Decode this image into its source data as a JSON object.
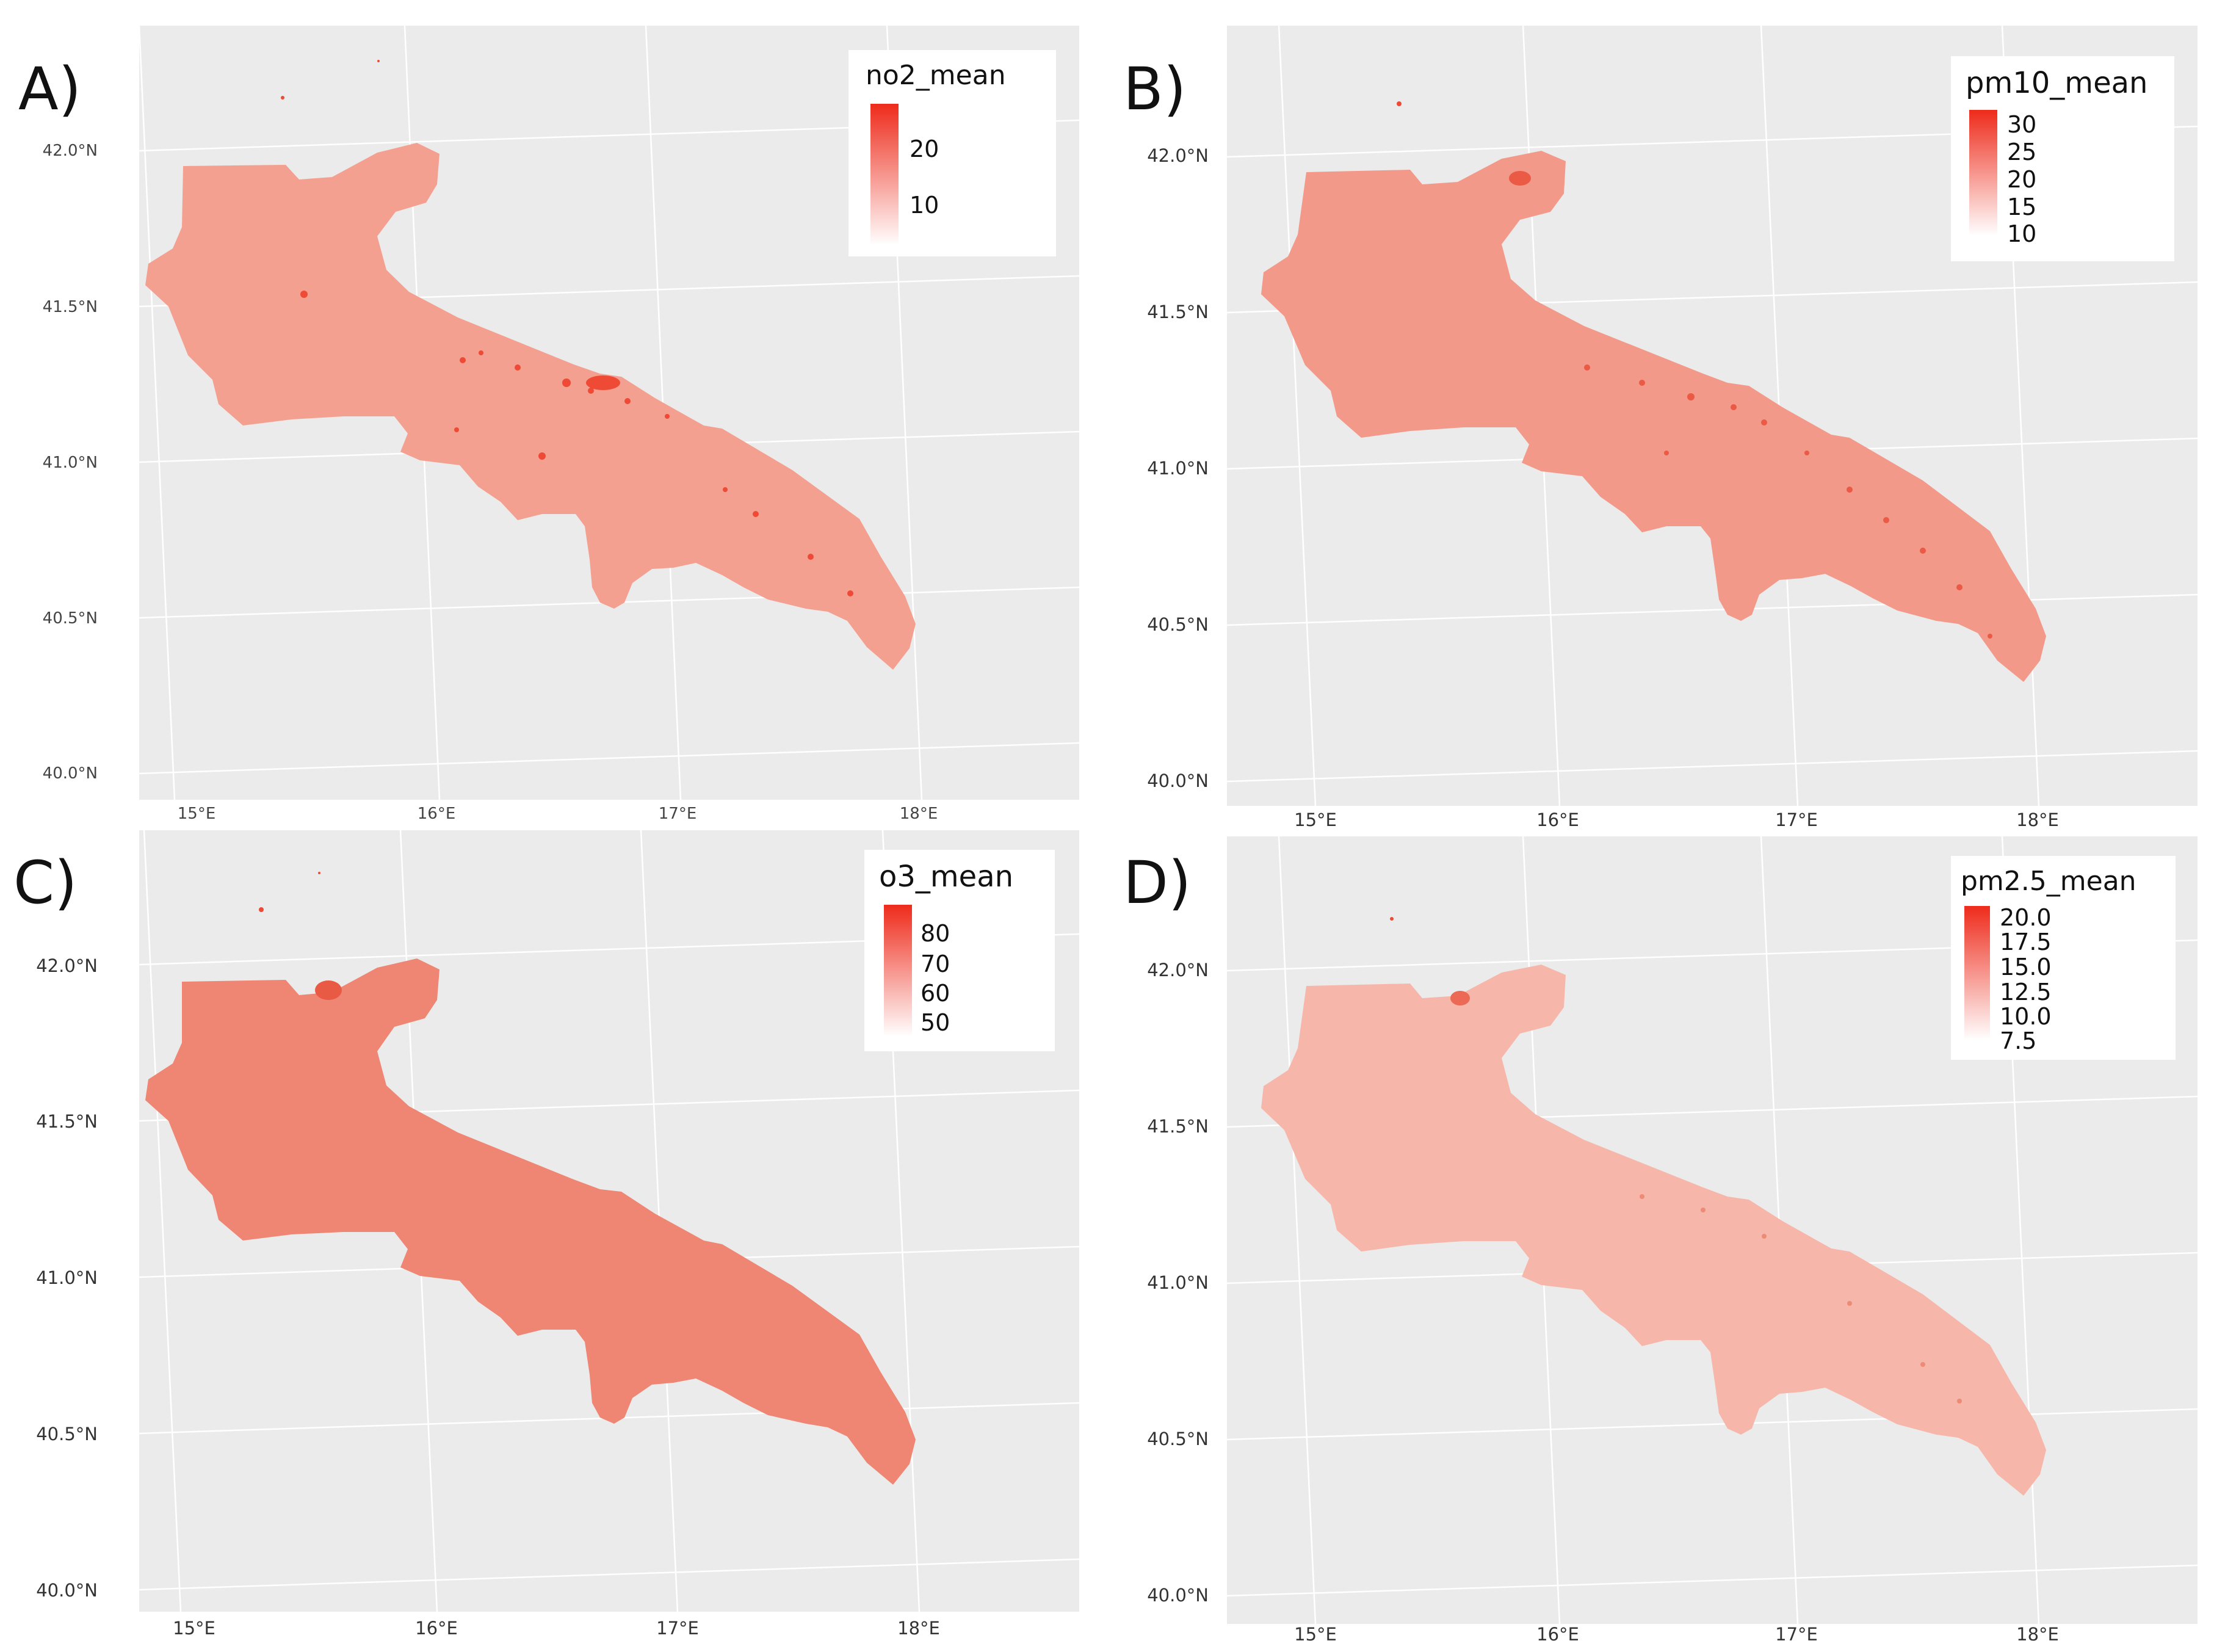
{
  "panels": [
    {
      "letter": "A)",
      "legend": {
        "title": "no2_mean",
        "ticks": [
          "20",
          "10"
        ]
      },
      "y_labels": [
        "42.0°N",
        "41.5°N",
        "41.0°N",
        "40.5°N",
        "40.0°N"
      ],
      "x_labels": [
        "15°E",
        "16°E",
        "17°E",
        "18°E"
      ],
      "fill_color": "#f4a090"
    },
    {
      "letter": "B)",
      "legend": {
        "title": "pm10_mean",
        "ticks": [
          "30",
          "25",
          "20",
          "15",
          "10"
        ]
      },
      "y_labels": [
        "42.0°N",
        "41.5°N",
        "41.0°N",
        "40.5°N",
        "40.0°N"
      ],
      "x_labels": [
        "15°E",
        "16°E",
        "17°E",
        "18°E"
      ],
      "fill_color": "#f2998a"
    },
    {
      "letter": "C)",
      "legend": {
        "title": "o3_mean",
        "ticks": [
          "80",
          "70",
          "60",
          "50"
        ]
      },
      "y_labels": [
        "42.0°N",
        "41.5°N",
        "41.0°N",
        "40.5°N",
        "40.0°N"
      ],
      "x_labels": [
        "15°E",
        "16°E",
        "17°E",
        "18°E"
      ],
      "fill_color": "#ef8573"
    },
    {
      "letter": "D)",
      "legend": {
        "title": "pm2.5_mean",
        "ticks": [
          "20.0",
          "17.5",
          "15.0",
          "12.5",
          "10.0",
          "7.5"
        ]
      },
      "y_labels": [
        "42.0°N",
        "41.5°N",
        "41.0°N",
        "40.5°N",
        "40.0°N"
      ],
      "x_labels": [
        "15°E",
        "16°E",
        "17°E",
        "18°E"
      ],
      "fill_color": "#f6b7aa"
    }
  ],
  "colors": {
    "background": "#ebebeb",
    "legend_high": "#ee2b1b",
    "legend_low": "#ffffff",
    "grid": "#ffffff"
  }
}
